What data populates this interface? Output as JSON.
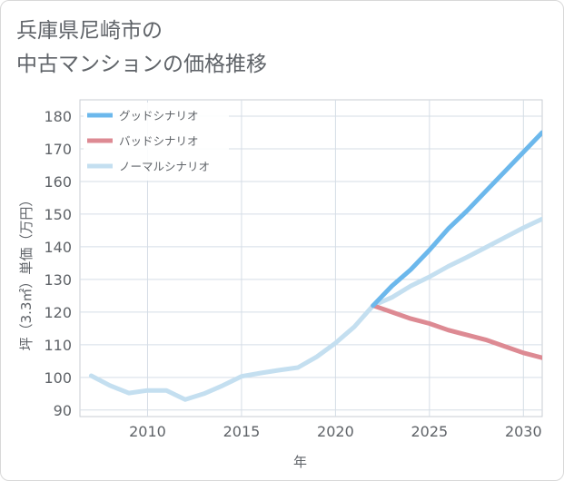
{
  "page": {
    "title_line1": "兵庫県尼崎市の",
    "title_line2": "中古マンションの価格推移"
  },
  "chart_data": {
    "type": "line",
    "title": "兵庫県尼崎市の中古マンションの価格推移",
    "xlabel": "年",
    "ylabel": "坪（3.3㎡）単価（万円）",
    "xlim": [
      2006.4,
      2031
    ],
    "ylim": [
      88,
      185
    ],
    "xticks": [
      2010,
      2015,
      2020,
      2025,
      2030
    ],
    "yticks": [
      90,
      100,
      110,
      120,
      130,
      140,
      150,
      160,
      170,
      180
    ],
    "grid": true,
    "legend_position": "top-left",
    "series": [
      {
        "name": "グッドシナリオ",
        "color": "#6cb8ec",
        "x": [
          2022,
          2023,
          2024,
          2025,
          2026,
          2027,
          2028,
          2029,
          2030,
          2031
        ],
        "y": [
          122,
          128,
          133,
          139,
          145.5,
          151,
          157,
          163,
          169,
          175
        ]
      },
      {
        "name": "バッドシナリオ",
        "color": "#dd8a93",
        "x": [
          2022,
          2023,
          2024,
          2025,
          2026,
          2027,
          2028,
          2029,
          2030,
          2031
        ],
        "y": [
          122,
          120,
          118,
          116.5,
          114.5,
          113,
          111.5,
          109.5,
          107.5,
          106
        ]
      },
      {
        "name": "ノーマルシナリオ",
        "color": "#c4dff0",
        "x": [
          2007,
          2008,
          2009,
          2010,
          2011,
          2012,
          2013,
          2014,
          2015,
          2016,
          2017,
          2018,
          2019,
          2020,
          2021,
          2022,
          2023,
          2024,
          2025,
          2026,
          2027,
          2028,
          2029,
          2030,
          2031
        ],
        "y": [
          100.5,
          97.5,
          95.2,
          96,
          96,
          93.2,
          95,
          97.5,
          100.3,
          101.3,
          102.2,
          103,
          106.3,
          110.5,
          115.5,
          122,
          124.5,
          128,
          130.8,
          134,
          136.8,
          139.8,
          142.8,
          145.8,
          148.5
        ]
      }
    ]
  }
}
